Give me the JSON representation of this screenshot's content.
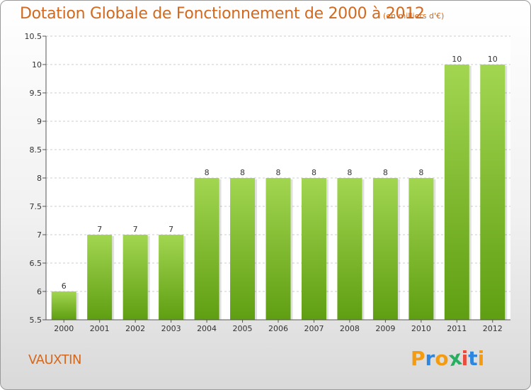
{
  "title": "Dotation Globale de Fonctionnement de 2000 à 2012",
  "subtitle": "(en milliers d'€)",
  "commune": "VAUXTIN",
  "logo": {
    "text": "Proxiti",
    "letters": [
      "P",
      "r",
      "o",
      "x",
      "i",
      "t",
      "i"
    ],
    "colors": [
      "#f39c12",
      "#2e86de",
      "#f39c12",
      "#27ae60",
      "#e74c3c",
      "#2e86de",
      "#f39c12"
    ]
  },
  "chart_data": {
    "type": "bar",
    "title": "Dotation Globale de Fonctionnement de 2000 à 2012",
    "subtitle": "(en milliers d'€)",
    "xlabel": "",
    "ylabel": "",
    "categories": [
      "2000",
      "2001",
      "2002",
      "2003",
      "2004",
      "2005",
      "2006",
      "2007",
      "2008",
      "2009",
      "2010",
      "2011",
      "2012"
    ],
    "values": [
      6,
      7,
      7,
      7,
      8,
      8,
      8,
      8,
      8,
      8,
      8,
      10,
      10
    ],
    "data_labels": [
      "6",
      "7",
      "7",
      "7",
      "8",
      "8",
      "8",
      "8",
      "8",
      "8",
      "8",
      "10",
      "10"
    ],
    "ylim": [
      5.5,
      10.5
    ],
    "yticks": [
      5.5,
      6,
      6.5,
      7,
      7.5,
      8,
      8.5,
      9,
      9.5,
      10,
      10.5
    ],
    "ytick_labels": [
      "5.5",
      "6",
      "6.5",
      "7",
      "7.5",
      "8",
      "8.5",
      "9",
      "9.5",
      "10",
      "10.5"
    ],
    "grid": true,
    "legend": "none",
    "colors": {
      "bar_light": "#a2d651",
      "bar_dark": "#5f9e12",
      "grid": "#cccccc",
      "axis": "#555555"
    }
  }
}
